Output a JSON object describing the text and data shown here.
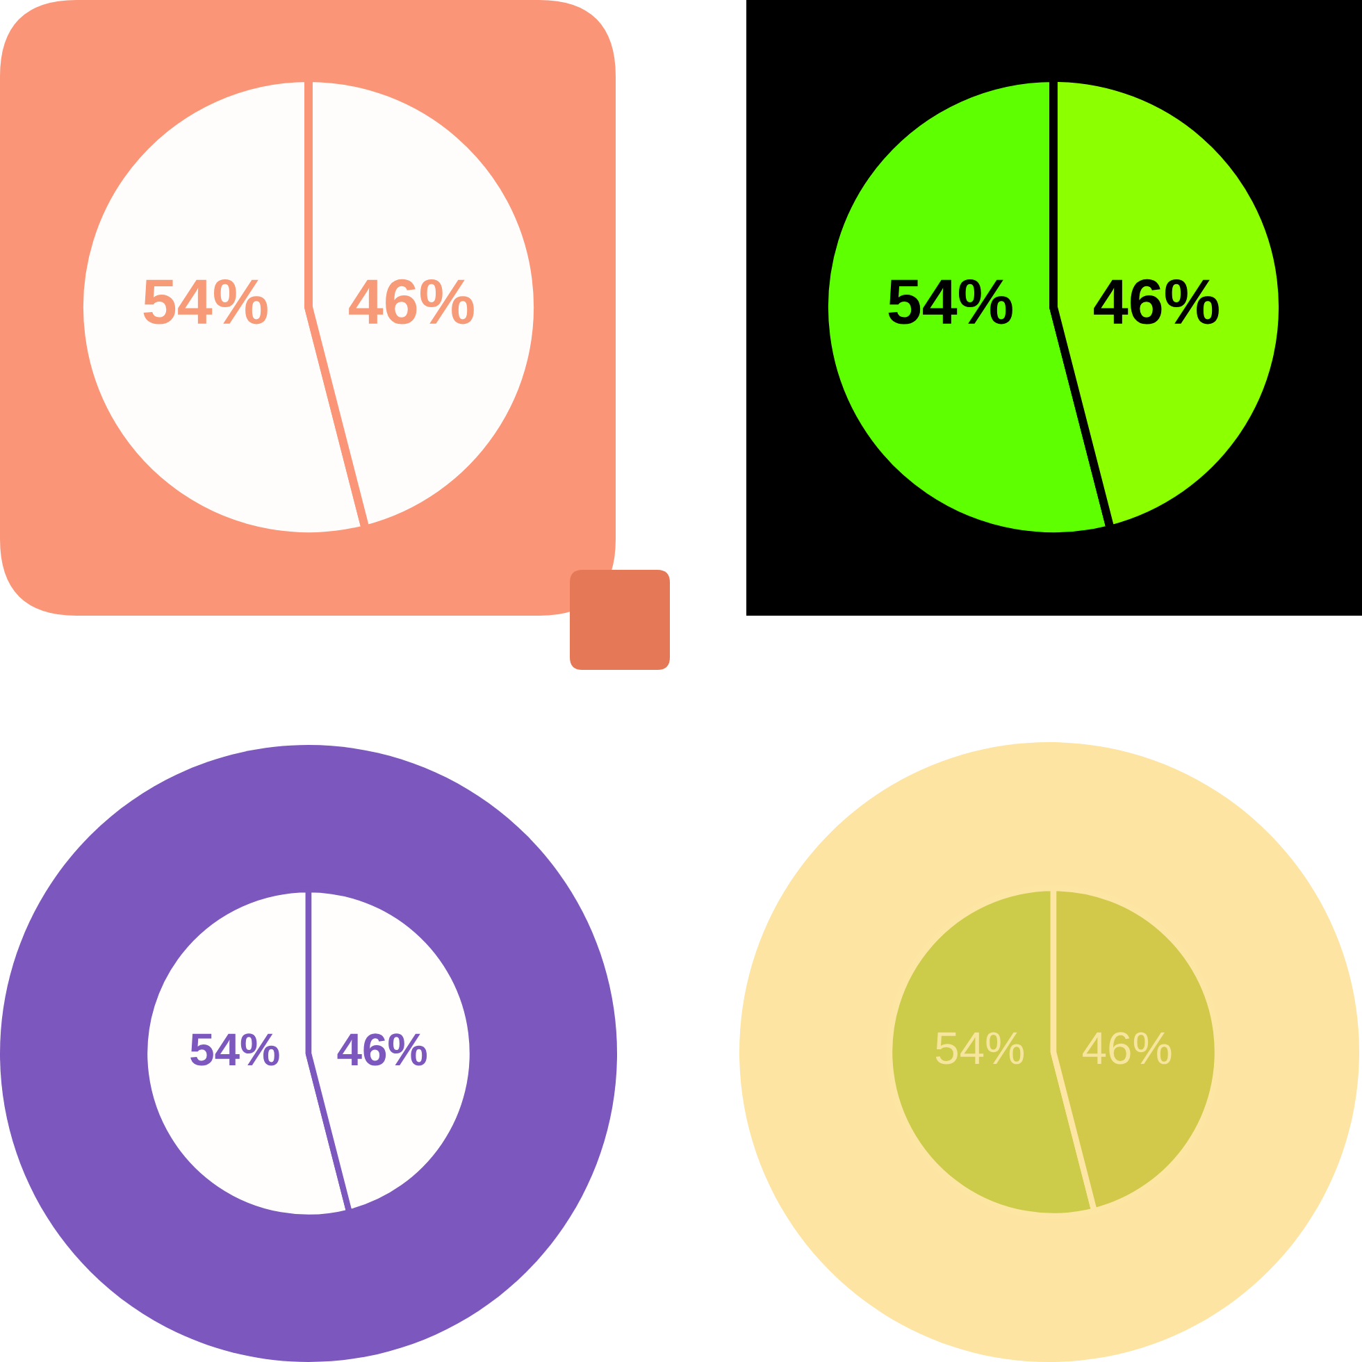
{
  "chart_data": [
    {
      "type": "pie",
      "categories": [
        null,
        null
      ],
      "values": [
        54,
        46
      ],
      "colors": [
        "#fffdfb",
        "#fffdfb"
      ],
      "value_labels": [
        "54%",
        "46%"
      ]
    },
    {
      "type": "pie",
      "categories": [
        null,
        null
      ],
      "values": [
        54,
        46
      ],
      "colors": [
        "#5eff00",
        "#8cff00"
      ],
      "value_labels": [
        "54%",
        "46%"
      ]
    },
    {
      "type": "pie",
      "categories": [
        null,
        null
      ],
      "values": [
        54,
        46
      ],
      "colors": [
        "#fffefc",
        "#fffefc"
      ],
      "value_labels": [
        "54%",
        "46%"
      ]
    },
    {
      "type": "pie",
      "categories": [
        null,
        null
      ],
      "values": [
        54,
        46
      ],
      "colors": [
        "#cccb4a",
        "#d2c84a"
      ],
      "value_labels": [
        "54%",
        "46%"
      ]
    }
  ]
}
